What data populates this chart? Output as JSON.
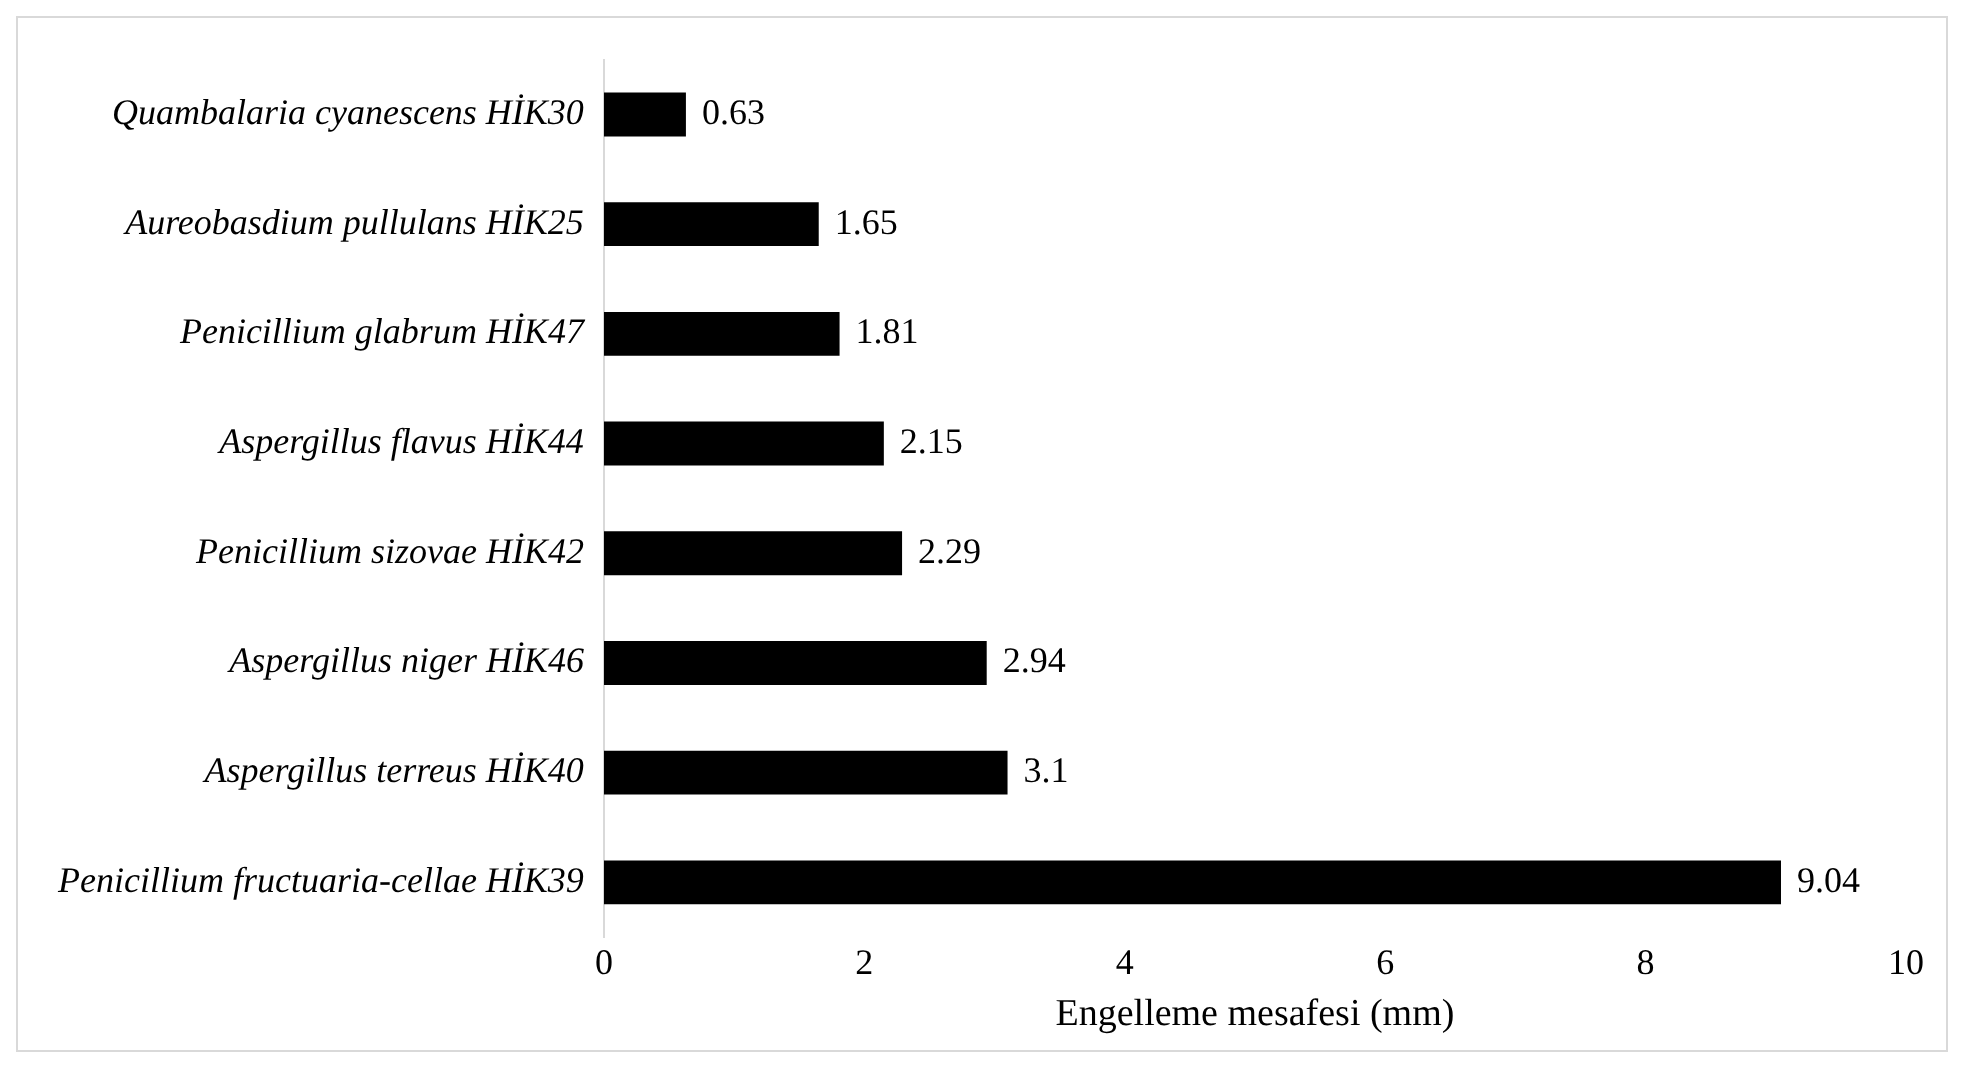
{
  "chart_data": {
    "type": "bar",
    "orientation": "horizontal",
    "xlabel": "Engelleme mesafesi (mm)",
    "categories": [
      "Quambalaria cyanescens HİK30",
      "Aureobasdium pullulans HİK25",
      "Penicillium glabrum HİK47",
      "Aspergillus flavus HİK44",
      "Penicillium sizovae HİK42",
      "Aspergillus niger HİK46",
      "Aspergillus terreus HİK40",
      "Penicillium fructuaria-cellae HİK39"
    ],
    "values": [
      0.63,
      1.65,
      1.81,
      2.15,
      2.29,
      2.94,
      3.1,
      9.04
    ],
    "color": "#000000",
    "xlim": [
      0,
      10
    ],
    "xticks": [
      0,
      2,
      4,
      6,
      8,
      10
    ],
    "grid": false,
    "legend": false,
    "data_labels": true
  }
}
